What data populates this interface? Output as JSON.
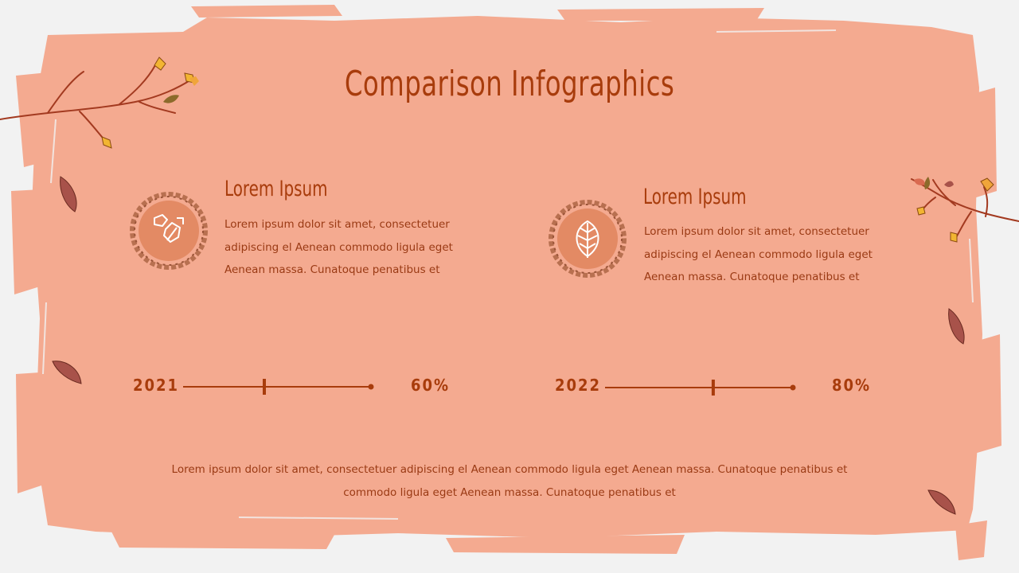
{
  "title": "Comparison Infographics",
  "columns": [
    {
      "heading": "Lorem Ipsum",
      "body": "Lorem ipsum dolor sit amet, consectetuer adipiscing el Aenean commodo ligula eget Aenean massa. Cunatoque penatibus et",
      "icon": "falling-leaves-icon",
      "year": "2021",
      "percent_label": "60%",
      "percent": 60
    },
    {
      "heading": "Lorem Ipsum",
      "body": "Lorem ipsum dolor sit amet, consectetuer adipiscing el Aenean commodo ligula eget Aenean massa. Cunatoque penatibus et",
      "icon": "leaf-icon",
      "year": "2022",
      "percent_label": "80%",
      "percent": 80
    }
  ],
  "footer": "Lorem ipsum dolor sit amet, consectetuer adipiscing el Aenean commodo ligula eget Aenean massa. Cunatoque penatibus et commodo ligula eget Aenean massa. Cunatoque penatibus et",
  "colors": {
    "panel": "#f4aa90",
    "accent": "#a83c0c",
    "wreath": "#e38a64",
    "background": "#f2f2f2"
  }
}
